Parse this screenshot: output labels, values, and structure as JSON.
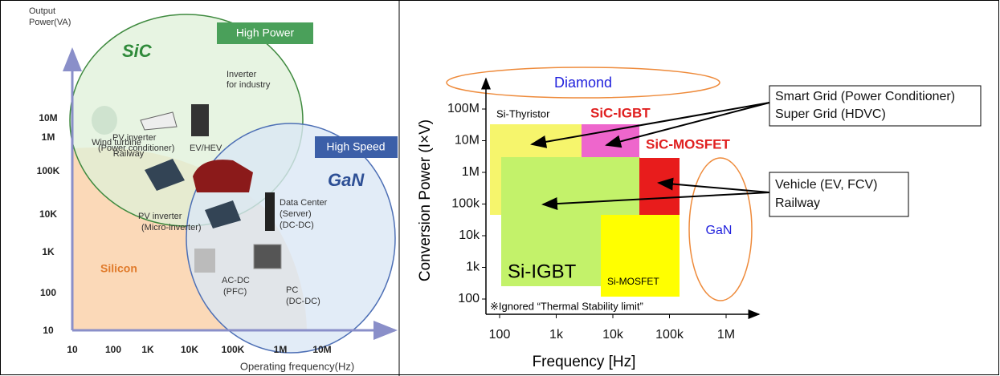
{
  "left_panel": {
    "y_axis_label": [
      "Output",
      "Power(VA)"
    ],
    "x_axis_label": "Operating frequency(Hz)",
    "yticks": [
      "10M",
      "1M",
      "100K",
      "10K",
      "1K",
      "100",
      "10"
    ],
    "xticks": [
      "10",
      "100",
      "1K",
      "10K",
      "100K",
      "1M",
      "10M"
    ],
    "high_power": "High Power",
    "sic": "SiC",
    "high_speed": "High Speed",
    "gan": "GaN",
    "silicon": "Silicon",
    "applications": [
      "Wind turbine",
      "Railway",
      "Inverter",
      "for industry",
      "PV inverter",
      "(Power conditioner)",
      "EV/HEV",
      "PV inverter",
      "(Micro-inverter)",
      "Data Center",
      "(Server)",
      "(DC-DC)",
      "AC-DC",
      "(PFC)",
      "PC",
      "(DC-DC)"
    ]
  },
  "right_panel": {
    "y_axis_label": "Conversion Power (I×V)",
    "x_axis_label": "Frequency [Hz]",
    "yticks": [
      "100M",
      "10M",
      "1M",
      "100k",
      "10k",
      "1k",
      "100"
    ],
    "xticks": [
      "100",
      "1k",
      "10k",
      "100k",
      "1M"
    ],
    "regions": [
      "Si-Thyristor",
      "SiC-IGBT",
      "SiC-MOSFET",
      "Si-IGBT",
      "Si-MOSFET",
      "Diamond",
      "GaN"
    ],
    "note": "※Ignored “Thermal Stability limit”",
    "callouts": [
      [
        "Smart Grid (Power Conditioner)",
        "Super Grid (HDVC)"
      ],
      [
        "Vehicle (EV, FCV)",
        "Railway"
      ]
    ]
  }
}
